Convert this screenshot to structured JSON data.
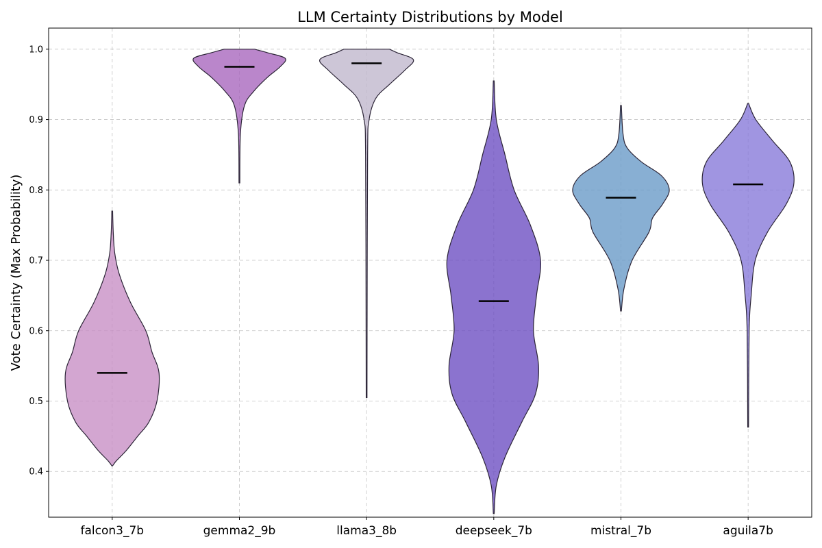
{
  "chart_data": {
    "type": "violin",
    "title": "LLM Certainty Distributions by Model",
    "xlabel": "",
    "ylabel": "Vote Certainty (Max Probability)",
    "ylim": [
      0.335,
      1.03
    ],
    "yticks": [
      "0.4",
      "0.5",
      "0.6",
      "0.7",
      "0.8",
      "0.9",
      "1.0"
    ],
    "grid": true,
    "categories": [
      "falcon3_7b",
      "gemma2_9b",
      "llama3_8b",
      "deepseek_7b",
      "mistral_7b",
      "aguila7b"
    ],
    "series": [
      {
        "category": "falcon3_7b",
        "color": "#c78dc4",
        "median": 0.54,
        "min": 0.408,
        "max": 0.77,
        "profile": [
          [
            0.408,
            0.0
          ],
          [
            0.415,
            0.08
          ],
          [
            0.43,
            0.28
          ],
          [
            0.45,
            0.5
          ],
          [
            0.47,
            0.72
          ],
          [
            0.5,
            0.88
          ],
          [
            0.54,
            0.92
          ],
          [
            0.57,
            0.78
          ],
          [
            0.6,
            0.66
          ],
          [
            0.64,
            0.36
          ],
          [
            0.68,
            0.14
          ],
          [
            0.71,
            0.05
          ],
          [
            0.74,
            0.02
          ],
          [
            0.77,
            0.0
          ]
        ]
      },
      {
        "category": "gemma2_9b",
        "color": "#a764bd",
        "median": 0.975,
        "min": 0.81,
        "max": 1.0,
        "profile": [
          [
            0.81,
            0.0
          ],
          [
            0.88,
            0.02
          ],
          [
            0.92,
            0.1
          ],
          [
            0.94,
            0.28
          ],
          [
            0.96,
            0.55
          ],
          [
            0.975,
            0.8
          ],
          [
            0.987,
            0.9
          ],
          [
            0.995,
            0.55
          ],
          [
            1.0,
            0.3
          ]
        ]
      },
      {
        "category": "llama3_8b",
        "color": "#bfb6cc",
        "median": 0.98,
        "min": 0.505,
        "max": 1.0,
        "profile": [
          [
            0.505,
            0.0
          ],
          [
            0.6,
            0.01
          ],
          [
            0.85,
            0.02
          ],
          [
            0.9,
            0.05
          ],
          [
            0.93,
            0.18
          ],
          [
            0.95,
            0.45
          ],
          [
            0.97,
            0.75
          ],
          [
            0.985,
            0.92
          ],
          [
            0.995,
            0.6
          ],
          [
            1.0,
            0.45
          ]
        ]
      },
      {
        "category": "deepseek_7b",
        "color": "#6a4cc1",
        "median": 0.642,
        "min": 0.34,
        "max": 0.955,
        "profile": [
          [
            0.34,
            0.0
          ],
          [
            0.38,
            0.05
          ],
          [
            0.42,
            0.22
          ],
          [
            0.47,
            0.55
          ],
          [
            0.51,
            0.82
          ],
          [
            0.55,
            0.88
          ],
          [
            0.6,
            0.78
          ],
          [
            0.65,
            0.84
          ],
          [
            0.7,
            0.92
          ],
          [
            0.75,
            0.72
          ],
          [
            0.8,
            0.4
          ],
          [
            0.85,
            0.22
          ],
          [
            0.9,
            0.05
          ],
          [
            0.955,
            0.0
          ]
        ]
      },
      {
        "category": "mistral_7b",
        "color": "#6699c7",
        "median": 0.789,
        "min": 0.628,
        "max": 0.92,
        "profile": [
          [
            0.628,
            0.0
          ],
          [
            0.66,
            0.06
          ],
          [
            0.7,
            0.22
          ],
          [
            0.74,
            0.55
          ],
          [
            0.76,
            0.62
          ],
          [
            0.78,
            0.82
          ],
          [
            0.8,
            0.95
          ],
          [
            0.82,
            0.8
          ],
          [
            0.84,
            0.4
          ],
          [
            0.86,
            0.12
          ],
          [
            0.88,
            0.04
          ],
          [
            0.92,
            0.0
          ]
        ]
      },
      {
        "category": "aguila7b",
        "color": "#8577d9",
        "median": 0.808,
        "min": 0.463,
        "max": 0.923,
        "profile": [
          [
            0.463,
            0.0
          ],
          [
            0.6,
            0.02
          ],
          [
            0.65,
            0.06
          ],
          [
            0.7,
            0.14
          ],
          [
            0.74,
            0.38
          ],
          [
            0.78,
            0.75
          ],
          [
            0.81,
            0.9
          ],
          [
            0.84,
            0.82
          ],
          [
            0.87,
            0.48
          ],
          [
            0.9,
            0.15
          ],
          [
            0.923,
            0.0
          ]
        ]
      }
    ]
  }
}
